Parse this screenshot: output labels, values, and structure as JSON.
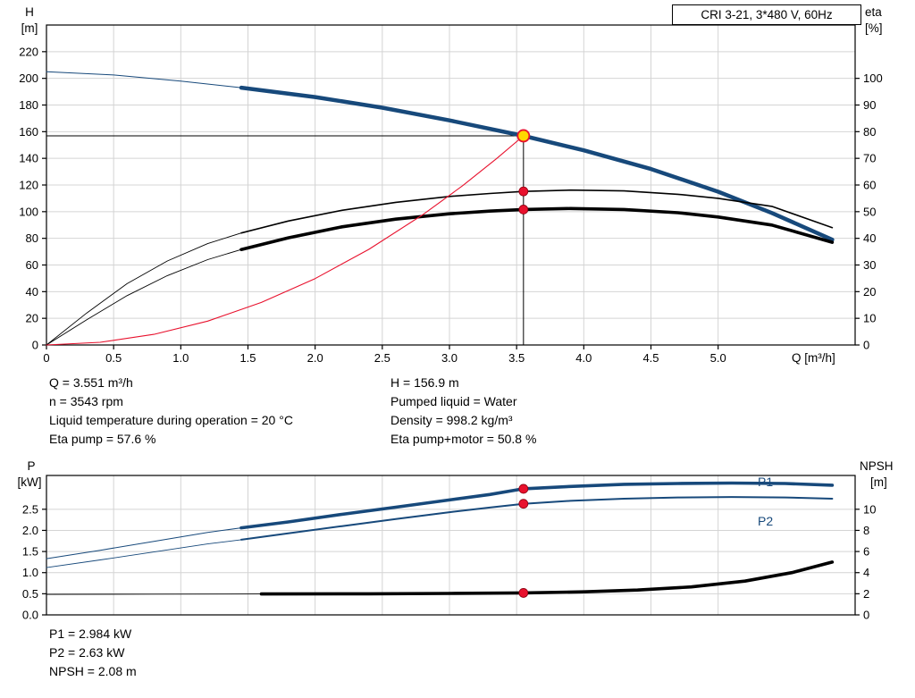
{
  "title": "CRI 3-21, 3*480 V, 60Hz",
  "colors": {
    "grid": "#d4d4d4",
    "axis": "#000000",
    "curve_blue": "#17497b",
    "curve_black": "#000000",
    "curve_red": "#e8112d",
    "dot_red": "#e8112d",
    "duty_fill": "#ffd700",
    "duty_stroke": "#e8112d"
  },
  "top_chart": {
    "y_left_label_1": "H",
    "y_left_label_2": "[m]",
    "y_right_label_1": "eta",
    "y_right_label_2": "[%]",
    "x_label": "Q [m³/h]"
  },
  "bottom_chart": {
    "y_left_label_1": "P",
    "y_left_label_2": "[kW]",
    "y_right_label_1": "NPSH",
    "y_right_label_2": "[m]",
    "p1_label": "P1",
    "p2_label": "P2"
  },
  "annotations": {
    "left": [
      "Q = 3.551 m³/h",
      "n = 3543 rpm",
      "Liquid temperature during operation = 20 °C",
      "Eta pump = 57.6 %"
    ],
    "right": [
      "H = 156.9 m",
      "Pumped liquid = Water",
      "Density = 998.2 kg/m³",
      "Eta pump+motor = 50.8 %"
    ],
    "bottom": [
      "P1 = 2.984 kW",
      "P2 = 2.63 kW",
      "NPSH = 2.08 m"
    ]
  },
  "chart_data": [
    {
      "type": "line",
      "title": "QH and efficiency curves",
      "x": {
        "min": 0,
        "max": 6.02,
        "show_labels": true,
        "tick_values": [
          0,
          0.5,
          1,
          1.5,
          2,
          2.5,
          3,
          3.5,
          4,
          4.5,
          5
        ],
        "tick_labels": [
          "0",
          "0.5",
          "1.0",
          "1.5",
          "2.0",
          "2.5",
          "3.0",
          "3.5",
          "4.0",
          "4.5",
          "5.0"
        ],
        "label": "Q [m³/h]"
      },
      "y_left": {
        "min": 0,
        "max": 240,
        "tick_values": [
          0,
          20,
          40,
          60,
          80,
          100,
          120,
          140,
          160,
          180,
          200,
          220
        ],
        "tick_labels": [
          "0",
          "20",
          "40",
          "60",
          "80",
          "100",
          "120",
          "140",
          "160",
          "180",
          "200",
          "220"
        ],
        "label": "H [m]"
      },
      "y_right": {
        "min": 0,
        "max": 120,
        "tick_values": [
          0,
          10,
          20,
          30,
          40,
          50,
          60,
          70,
          80,
          90,
          100
        ],
        "tick_labels": [
          "0",
          "10",
          "20",
          "30",
          "40",
          "50",
          "60",
          "70",
          "80",
          "90",
          "100"
        ],
        "label": "eta [%]"
      },
      "series": [
        {
          "name": "QH curve",
          "axis": "left",
          "color": "#17497b",
          "thin_width": 1,
          "thick_width": 4.5,
          "thick_from": 1.45,
          "points": [
            [
              0,
              205
            ],
            [
              0.5,
              202.5
            ],
            [
              1.0,
              198
            ],
            [
              1.45,
              193
            ],
            [
              2.0,
              186
            ],
            [
              2.5,
              178
            ],
            [
              3.0,
              168.5
            ],
            [
              3.551,
              156.9
            ],
            [
              4.0,
              146
            ],
            [
              4.5,
              132
            ],
            [
              5.0,
              115
            ],
            [
              5.4,
              99
            ],
            [
              5.85,
              79
            ]
          ]
        },
        {
          "name": "Eta pump",
          "axis": "right",
          "color": "#000000",
          "thin_width": 0.9,
          "thick_width": 1.6,
          "thick_from": 1.45,
          "points": [
            [
              0,
              0
            ],
            [
              0.3,
              12
            ],
            [
              0.6,
              23
            ],
            [
              0.9,
              31.5
            ],
            [
              1.2,
              38
            ],
            [
              1.45,
              42
            ],
            [
              1.8,
              46.5
            ],
            [
              2.2,
              50.5
            ],
            [
              2.6,
              53.5
            ],
            [
              3.0,
              55.7
            ],
            [
              3.3,
              56.8
            ],
            [
              3.551,
              57.6
            ],
            [
              3.9,
              58.1
            ],
            [
              4.3,
              57.8
            ],
            [
              4.7,
              56.5
            ],
            [
              5.0,
              55
            ],
            [
              5.4,
              52
            ],
            [
              5.85,
              44
            ]
          ]
        },
        {
          "name": "Eta pump+motor",
          "axis": "right",
          "color": "#000000",
          "thin_width": 0.9,
          "thick_width": 3.6,
          "thick_from": 1.45,
          "points": [
            [
              0,
              0
            ],
            [
              0.3,
              9.5
            ],
            [
              0.6,
              18.5
            ],
            [
              0.9,
              26
            ],
            [
              1.2,
              32
            ],
            [
              1.45,
              35.8
            ],
            [
              1.8,
              40.2
            ],
            [
              2.2,
              44.3
            ],
            [
              2.6,
              47.2
            ],
            [
              3.0,
              49.2
            ],
            [
              3.3,
              50.2
            ],
            [
              3.551,
              50.8
            ],
            [
              3.9,
              51.2
            ],
            [
              4.3,
              50.8
            ],
            [
              4.7,
              49.6
            ],
            [
              5.0,
              48
            ],
            [
              5.4,
              45
            ],
            [
              5.85,
              38.5
            ]
          ]
        },
        {
          "name": "System curve to duty point",
          "axis": "left",
          "color": "#e8112d",
          "width": 1.1,
          "points": [
            [
              0,
              0
            ],
            [
              0.4,
              2.0
            ],
            [
              0.8,
              8.0
            ],
            [
              1.2,
              17.9
            ],
            [
              1.6,
              31.9
            ],
            [
              2.0,
              49.8
            ],
            [
              2.4,
              71.7
            ],
            [
              2.8,
              97.6
            ],
            [
              3.1,
              119.6
            ],
            [
              3.35,
              139.7
            ],
            [
              3.551,
              156.9
            ]
          ]
        }
      ],
      "crosshair": {
        "q": 3.551,
        "value": 156.9
      },
      "duty_point": {
        "q": 3.551,
        "value": 156.9
      },
      "markers": [
        {
          "q": 3.551,
          "value": 57.6,
          "axis": "right"
        },
        {
          "q": 3.551,
          "value": 50.8,
          "axis": "right"
        }
      ]
    },
    {
      "type": "line",
      "title": "Power and NPSH curves",
      "x": {
        "min": 0,
        "max": 6.02,
        "show_labels": false,
        "tick_values": [
          0,
          0.5,
          1,
          1.5,
          2,
          2.5,
          3,
          3.5,
          4,
          4.5,
          5
        ],
        "tick_labels": [
          "0",
          "0.5",
          "1.0",
          "1.5",
          "2.0",
          "2.5",
          "3.0",
          "3.5",
          "4.0",
          "4.5",
          "5.0"
        ],
        "label": ""
      },
      "y_left": {
        "min": 0,
        "max": 3.3,
        "tick_values": [
          0,
          0.5,
          1,
          1.5,
          2,
          2.5
        ],
        "tick_labels": [
          "0.0",
          "0.5",
          "1.0",
          "1.5",
          "2.0",
          "2.5"
        ],
        "label": "P [kW]"
      },
      "y_right": {
        "min": 0,
        "max": 13.2,
        "tick_values": [
          0,
          2,
          4,
          6,
          8,
          10
        ],
        "tick_labels": [
          "0",
          "2",
          "4",
          "6",
          "8",
          "10"
        ],
        "label": "NPSH [m]"
      },
      "series": [
        {
          "name": "P1",
          "axis": "left",
          "color": "#17497b",
          "thin_width": 1,
          "thick_width": 3.6,
          "thick_from": 1.45,
          "points": [
            [
              0,
              1.33
            ],
            [
              0.4,
              1.53
            ],
            [
              0.8,
              1.74
            ],
            [
              1.2,
              1.95
            ],
            [
              1.45,
              2.06
            ],
            [
              1.8,
              2.2
            ],
            [
              2.2,
              2.38
            ],
            [
              2.6,
              2.55
            ],
            [
              3.0,
              2.72
            ],
            [
              3.3,
              2.85
            ],
            [
              3.551,
              2.984
            ],
            [
              3.9,
              3.04
            ],
            [
              4.3,
              3.09
            ],
            [
              4.7,
              3.11
            ],
            [
              5.1,
              3.12
            ],
            [
              5.5,
              3.11
            ],
            [
              5.85,
              3.07
            ]
          ]
        },
        {
          "name": "P2",
          "axis": "left",
          "color": "#17497b",
          "thin_width": 0.9,
          "thick_width": 2,
          "thick_from": 1.45,
          "points": [
            [
              0,
              1.12
            ],
            [
              0.4,
              1.3
            ],
            [
              0.8,
              1.49
            ],
            [
              1.2,
              1.68
            ],
            [
              1.45,
              1.78
            ],
            [
              1.8,
              1.93
            ],
            [
              2.2,
              2.1
            ],
            [
              2.6,
              2.27
            ],
            [
              3.0,
              2.43
            ],
            [
              3.3,
              2.54
            ],
            [
              3.551,
              2.63
            ],
            [
              3.9,
              2.7
            ],
            [
              4.3,
              2.75
            ],
            [
              4.7,
              2.78
            ],
            [
              5.1,
              2.79
            ],
            [
              5.5,
              2.78
            ],
            [
              5.85,
              2.75
            ]
          ]
        },
        {
          "name": "NPSH",
          "axis": "right",
          "color": "#000000",
          "thin_width": 0.9,
          "thick_width": 3.6,
          "thick_from": 1.6,
          "points": [
            [
              0,
              1.95
            ],
            [
              0.8,
              1.96
            ],
            [
              1.6,
              1.98
            ],
            [
              2.4,
              2.0
            ],
            [
              3.0,
              2.03
            ],
            [
              3.551,
              2.08
            ],
            [
              4.0,
              2.18
            ],
            [
              4.4,
              2.35
            ],
            [
              4.8,
              2.65
            ],
            [
              5.2,
              3.2
            ],
            [
              5.55,
              4.0
            ],
            [
              5.85,
              5.0
            ]
          ]
        }
      ],
      "markers": [
        {
          "q": 3.551,
          "value": 2.984,
          "axis": "left"
        },
        {
          "q": 3.551,
          "value": 2.63,
          "axis": "left"
        },
        {
          "q": 3.551,
          "value": 2.08,
          "axis": "right"
        }
      ]
    }
  ]
}
